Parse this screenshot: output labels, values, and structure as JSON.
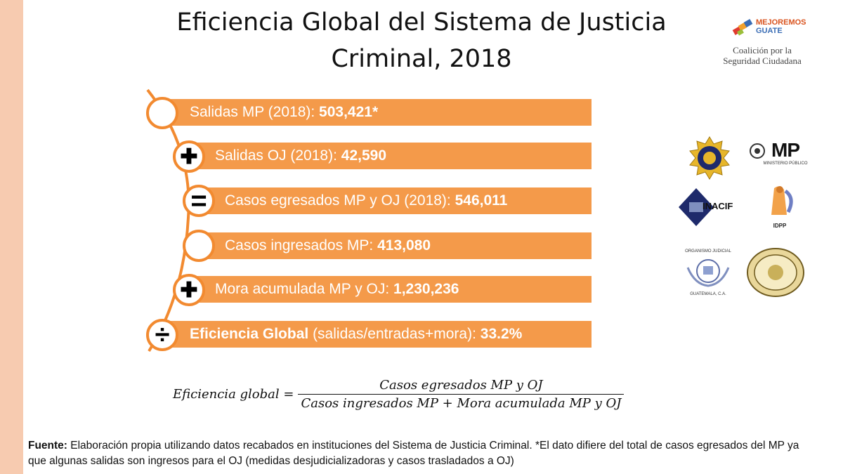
{
  "title": {
    "line1": "Eficiencia Global del Sistema de Justicia",
    "line2": "Criminal, 2018"
  },
  "coalition_logo": {
    "brand_line1": "MEJOREMOS",
    "brand_line2": "GUATE",
    "name_line1": "Coalición por la",
    "name_line2": "Seguridad Ciudadana"
  },
  "rows": [
    {
      "operator": "",
      "label": "Salidas MP (2018): ",
      "value": "503,421*"
    },
    {
      "operator": "✚",
      "label": "Salidas OJ (2018): ",
      "value": "42,590"
    },
    {
      "operator": "=",
      "label": "Casos egresados MP y OJ (2018): ",
      "value": "546,011"
    },
    {
      "operator": "",
      "label": "Casos ingresados MP: ",
      "value": "413,080"
    },
    {
      "operator": "✚",
      "label": "Mora acumulada MP y OJ: ",
      "value": "1,230,236"
    },
    {
      "operator": "÷",
      "label_bold": "Eficiencia Global",
      "label": " (salidas/entradas+mora):  ",
      "value": "33.2%"
    }
  ],
  "institutions": {
    "mp": "MP",
    "mp_sub": "MINISTERIO PÚBLICO",
    "inacif": "INACIF",
    "idpp": "IDPP",
    "oj_top": "ORGANISMO JUDICIAL",
    "oj_bottom": "GUATEMALA, C.A."
  },
  "formula": {
    "lhs": "Eficiencia global =",
    "numerator": "Casos egresados MP y OJ",
    "denominator": "Casos ingresados MP + Mora acumulada MP y OJ"
  },
  "source": {
    "label": "Fuente:",
    "text": " Elaboración propia utilizando datos recabados en instituciones del Sistema de Justicia Criminal. *El dato difiere del total de casos egresados del MP ya que algunas salidas son ingresos para el OJ (medidas desjudicializadoras y casos trasladados a OJ)"
  },
  "colors": {
    "accent": "#f49a4a",
    "ring": "#f28a30",
    "stripe": "#f7cbb0"
  }
}
